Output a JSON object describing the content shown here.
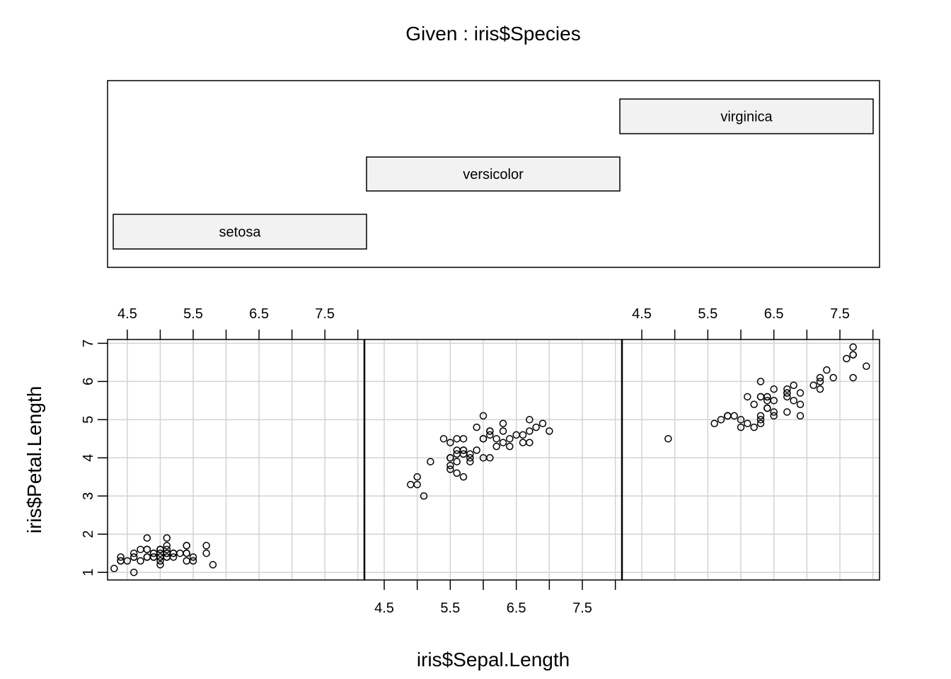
{
  "chart_data": {
    "type": "scatter",
    "title": "Given : iris$Species",
    "xlabel": "iris$Sepal.Length",
    "ylabel": "iris$Petal.Length",
    "xlim": [
      4.2,
      8.1
    ],
    "ylim": [
      0.8,
      7.1
    ],
    "x_ticks": [
      4.5,
      5.5,
      6.5,
      7.5
    ],
    "x_tick_labels": [
      "4.5",
      "5.5",
      "6.5",
      "7.5"
    ],
    "y_ticks": [
      1,
      2,
      3,
      4,
      5,
      6,
      7
    ],
    "y_tick_labels": [
      "1",
      "2",
      "3",
      "4",
      "5",
      "6",
      "7"
    ],
    "grid": true,
    "given": {
      "variable": "iris$Species",
      "levels": [
        "setosa",
        "versicolor",
        "virginica"
      ]
    },
    "panels": [
      {
        "name": "setosa",
        "points": [
          [
            5.1,
            1.4
          ],
          [
            4.9,
            1.4
          ],
          [
            4.7,
            1.3
          ],
          [
            4.6,
            1.5
          ],
          [
            5.0,
            1.4
          ],
          [
            5.4,
            1.7
          ],
          [
            4.6,
            1.4
          ],
          [
            5.0,
            1.5
          ],
          [
            4.4,
            1.4
          ],
          [
            4.9,
            1.5
          ],
          [
            5.4,
            1.5
          ],
          [
            4.8,
            1.6
          ],
          [
            4.8,
            1.4
          ],
          [
            4.3,
            1.1
          ],
          [
            5.8,
            1.2
          ],
          [
            5.7,
            1.5
          ],
          [
            5.4,
            1.3
          ],
          [
            5.1,
            1.4
          ],
          [
            5.7,
            1.7
          ],
          [
            5.1,
            1.5
          ],
          [
            5.4,
            1.7
          ],
          [
            5.1,
            1.5
          ],
          [
            4.6,
            1.0
          ],
          [
            5.1,
            1.7
          ],
          [
            4.8,
            1.9
          ],
          [
            5.0,
            1.6
          ],
          [
            5.0,
            1.6
          ],
          [
            5.2,
            1.5
          ],
          [
            5.2,
            1.4
          ],
          [
            4.7,
            1.6
          ],
          [
            4.8,
            1.6
          ],
          [
            5.4,
            1.5
          ],
          [
            5.2,
            1.5
          ],
          [
            5.5,
            1.4
          ],
          [
            4.9,
            1.5
          ],
          [
            5.0,
            1.2
          ],
          [
            5.5,
            1.3
          ],
          [
            4.9,
            1.4
          ],
          [
            4.4,
            1.3
          ],
          [
            5.1,
            1.5
          ],
          [
            5.0,
            1.3
          ],
          [
            4.5,
            1.3
          ],
          [
            4.4,
            1.3
          ],
          [
            5.0,
            1.6
          ],
          [
            5.1,
            1.9
          ],
          [
            4.8,
            1.4
          ],
          [
            5.1,
            1.6
          ],
          [
            4.6,
            1.4
          ],
          [
            5.3,
            1.5
          ],
          [
            5.0,
            1.4
          ]
        ]
      },
      {
        "name": "versicolor",
        "points": [
          [
            7.0,
            4.7
          ],
          [
            6.4,
            4.5
          ],
          [
            6.9,
            4.9
          ],
          [
            5.5,
            4.0
          ],
          [
            6.5,
            4.6
          ],
          [
            5.7,
            4.5
          ],
          [
            6.3,
            4.7
          ],
          [
            4.9,
            3.3
          ],
          [
            6.6,
            4.6
          ],
          [
            5.2,
            3.9
          ],
          [
            5.0,
            3.5
          ],
          [
            5.9,
            4.2
          ],
          [
            6.0,
            4.0
          ],
          [
            6.1,
            4.7
          ],
          [
            5.6,
            3.6
          ],
          [
            6.7,
            4.4
          ],
          [
            5.6,
            4.5
          ],
          [
            5.8,
            4.1
          ],
          [
            6.2,
            4.5
          ],
          [
            5.6,
            3.9
          ],
          [
            5.9,
            4.8
          ],
          [
            6.1,
            4.0
          ],
          [
            6.3,
            4.9
          ],
          [
            6.1,
            4.7
          ],
          [
            6.4,
            4.3
          ],
          [
            6.6,
            4.4
          ],
          [
            6.8,
            4.8
          ],
          [
            6.7,
            5.0
          ],
          [
            6.0,
            4.5
          ],
          [
            5.7,
            3.5
          ],
          [
            5.5,
            3.8
          ],
          [
            5.5,
            3.7
          ],
          [
            5.8,
            3.9
          ],
          [
            6.0,
            5.1
          ],
          [
            5.4,
            4.5
          ],
          [
            6.0,
            4.5
          ],
          [
            6.7,
            4.7
          ],
          [
            6.3,
            4.4
          ],
          [
            5.6,
            4.1
          ],
          [
            5.5,
            4.0
          ],
          [
            5.5,
            4.4
          ],
          [
            6.1,
            4.6
          ],
          [
            5.8,
            4.0
          ],
          [
            5.0,
            3.3
          ],
          [
            5.6,
            4.2
          ],
          [
            5.7,
            4.2
          ],
          [
            5.7,
            4.2
          ],
          [
            6.2,
            4.3
          ],
          [
            5.1,
            3.0
          ],
          [
            5.7,
            4.1
          ]
        ]
      },
      {
        "name": "virginica",
        "points": [
          [
            6.3,
            6.0
          ],
          [
            5.8,
            5.1
          ],
          [
            7.1,
            5.9
          ],
          [
            6.3,
            5.6
          ],
          [
            6.5,
            5.8
          ],
          [
            7.6,
            6.6
          ],
          [
            4.9,
            4.5
          ],
          [
            7.3,
            6.3
          ],
          [
            6.7,
            5.8
          ],
          [
            7.2,
            6.1
          ],
          [
            6.5,
            5.1
          ],
          [
            6.4,
            5.3
          ],
          [
            6.8,
            5.5
          ],
          [
            5.7,
            5.0
          ],
          [
            5.8,
            5.1
          ],
          [
            6.4,
            5.3
          ],
          [
            6.5,
            5.5
          ],
          [
            7.7,
            6.7
          ],
          [
            7.7,
            6.9
          ],
          [
            6.0,
            5.0
          ],
          [
            6.9,
            5.7
          ],
          [
            5.6,
            4.9
          ],
          [
            7.7,
            6.7
          ],
          [
            6.3,
            4.9
          ],
          [
            6.7,
            5.7
          ],
          [
            7.2,
            6.0
          ],
          [
            6.2,
            4.8
          ],
          [
            6.1,
            4.9
          ],
          [
            6.4,
            5.6
          ],
          [
            7.2,
            5.8
          ],
          [
            7.4,
            6.1
          ],
          [
            7.9,
            6.4
          ],
          [
            6.4,
            5.6
          ],
          [
            6.3,
            5.1
          ],
          [
            6.1,
            5.6
          ],
          [
            7.7,
            6.1
          ],
          [
            6.3,
            5.6
          ],
          [
            6.4,
            5.5
          ],
          [
            6.0,
            4.8
          ],
          [
            6.9,
            5.4
          ],
          [
            6.7,
            5.6
          ],
          [
            6.9,
            5.1
          ],
          [
            5.8,
            5.1
          ],
          [
            6.8,
            5.9
          ],
          [
            6.7,
            5.7
          ],
          [
            6.7,
            5.2
          ],
          [
            6.3,
            5.0
          ],
          [
            6.5,
            5.2
          ],
          [
            6.2,
            5.4
          ],
          [
            5.9,
            5.1
          ]
        ]
      }
    ]
  }
}
